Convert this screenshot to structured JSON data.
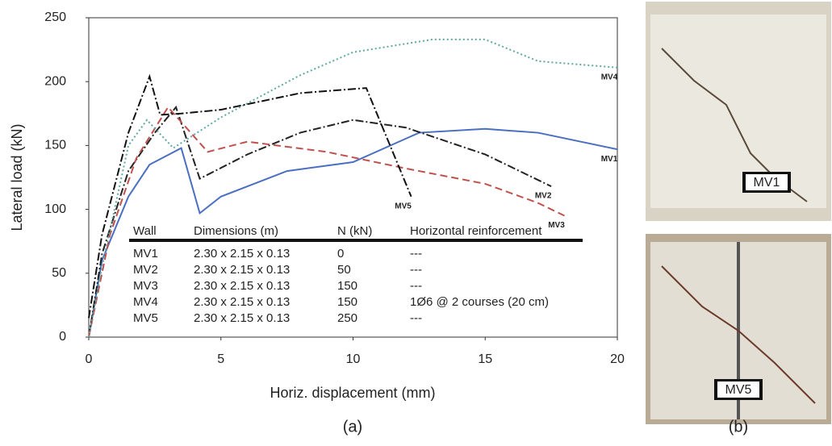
{
  "chart_data": {
    "type": "line",
    "x_label": "Horiz. displacement (mm)",
    "y_label": "Lateral load (kN)",
    "caption": "(a)",
    "xlim": [
      0,
      20
    ],
    "xticks": [
      0,
      5,
      10,
      15,
      20
    ],
    "ylim": [
      0,
      250
    ],
    "yticks": [
      0,
      50,
      100,
      150,
      200,
      250
    ],
    "series": [
      {
        "name": "MV1",
        "color": "#4a6fc0",
        "style": "solid",
        "x": [
          0,
          0.5,
          1.5,
          2.3,
          3.5,
          4.2,
          5,
          7.5,
          10,
          12.5,
          15,
          17,
          20
        ],
        "values": [
          0,
          60,
          110,
          135,
          148,
          97,
          110,
          130,
          137,
          160,
          163,
          160,
          147
        ]
      },
      {
        "name": "MV2",
        "color": "#222222",
        "style": "dashdot",
        "x": [
          0,
          0.5,
          1.5,
          2.5,
          3.3,
          4.2,
          6,
          8,
          10,
          12,
          15,
          17.5
        ],
        "values": [
          0,
          65,
          130,
          160,
          180,
          124,
          143,
          160,
          170,
          164,
          143,
          118
        ]
      },
      {
        "name": "MV3",
        "color": "#c0504d",
        "style": "dashed",
        "x": [
          0,
          0.8,
          1.8,
          3,
          4.5,
          6,
          9,
          12,
          15,
          17,
          18
        ],
        "values": [
          0,
          80,
          140,
          180,
          145,
          153,
          145,
          132,
          120,
          105,
          95
        ]
      },
      {
        "name": "MV4",
        "color": "#5fa8a0",
        "style": "dotted",
        "x": [
          0,
          0.5,
          1.5,
          2.2,
          3.2,
          5,
          8,
          10,
          13,
          15,
          17,
          20
        ],
        "values": [
          0,
          55,
          150,
          170,
          148,
          172,
          205,
          223,
          233,
          233,
          216,
          211
        ]
      },
      {
        "name": "MV5",
        "color": "#111111",
        "style": "dashdot",
        "x": [
          0,
          0.5,
          1.5,
          2.3,
          2.7,
          3.5,
          5,
          8,
          10.5,
          12.2
        ],
        "values": [
          15,
          80,
          160,
          204,
          174,
          175,
          178,
          191,
          195,
          110
        ]
      }
    ],
    "table": {
      "header": [
        "Wall",
        "Dimensions (m)",
        "N (kN)",
        "Horizontal reinforcement"
      ],
      "rows": [
        [
          "MV1",
          "2.30 x 2.15 x 0.13",
          "0",
          "---"
        ],
        [
          "MV2",
          "2.30 x 2.15 x 0.13",
          "50",
          "---"
        ],
        [
          "MV3",
          "2.30 x 2.15 x 0.13",
          "150",
          "---"
        ],
        [
          "MV4",
          "2.30 x 2.15 x 0.13",
          "150",
          "1Ø6 @ 2 courses (20 cm)"
        ],
        [
          "MV5",
          "2.30 x 2.15 x 0.13",
          "250",
          "---"
        ]
      ]
    }
  },
  "photos": [
    {
      "label": "MV1"
    },
    {
      "label": "MV5"
    }
  ],
  "photos_caption": "(b)"
}
